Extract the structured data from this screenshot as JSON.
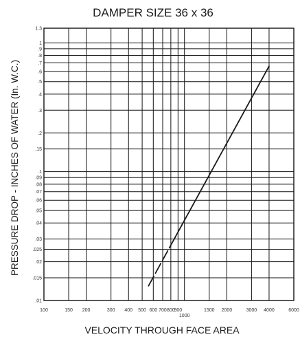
{
  "chart_data": {
    "type": "line",
    "title": "DAMPER SIZE 36 x 36",
    "xlabel": "VELOCITY THROUGH FACE AREA",
    "ylabel": "PRESSURE DROP - INCHES OF WATER (In. W.C.)",
    "x_scale": "log",
    "y_scale": "log",
    "xlim": [
      100,
      6000
    ],
    "ylim": [
      0.01,
      1.3
    ],
    "grid": true,
    "x_ticks": [
      {
        "value": 100,
        "label": "100"
      },
      {
        "value": 150,
        "label": "150"
      },
      {
        "value": 200,
        "label": "200"
      },
      {
        "value": 300,
        "label": "300"
      },
      {
        "value": 400,
        "label": "400"
      },
      {
        "value": 500,
        "label": "500"
      },
      {
        "value": 600,
        "label": "600"
      },
      {
        "value": 700,
        "label": "700"
      },
      {
        "value": 800,
        "label": "800"
      },
      {
        "value": 900,
        "label": "900"
      },
      {
        "value": 1000,
        "label": "1000"
      },
      {
        "value": 1500,
        "label": "1500"
      },
      {
        "value": 2000,
        "label": "2000"
      },
      {
        "value": 3000,
        "label": "3000"
      },
      {
        "value": 4000,
        "label": "4000"
      },
      {
        "value": 6000,
        "label": "6000"
      }
    ],
    "y_ticks": [
      {
        "value": 0.01,
        "label": ".01"
      },
      {
        "value": 0.015,
        "label": ".015"
      },
      {
        "value": 0.02,
        "label": ".02"
      },
      {
        "value": 0.025,
        "label": ".025"
      },
      {
        "value": 0.03,
        "label": ".03"
      },
      {
        "value": 0.04,
        "label": ".04"
      },
      {
        "value": 0.05,
        "label": ".05"
      },
      {
        "value": 0.06,
        "label": ".06"
      },
      {
        "value": 0.07,
        "label": ".07"
      },
      {
        "value": 0.08,
        "label": ".08"
      },
      {
        "value": 0.09,
        "label": ".09"
      },
      {
        "value": 0.1,
        "label": ".1"
      },
      {
        "value": 0.15,
        "label": ".15"
      },
      {
        "value": 0.2,
        "label": ".2"
      },
      {
        "value": 0.3,
        "label": ".3"
      },
      {
        "value": 0.4,
        "label": ".4"
      },
      {
        "value": 0.5,
        "label": ".5"
      },
      {
        "value": 0.6,
        "label": ".6"
      },
      {
        "value": 0.7,
        "label": ".7"
      },
      {
        "value": 0.8,
        "label": ".8"
      },
      {
        "value": 0.9,
        "label": ".9"
      },
      {
        "value": 1.0,
        "label": "1"
      },
      {
        "value": 1.3,
        "label": "1.3"
      }
    ],
    "series": [
      {
        "points": [
          {
            "x": 555,
            "y": 0.013
          },
          {
            "x": 4000,
            "y": 0.66
          }
        ],
        "dashed_until_x": 850
      }
    ],
    "colors": {
      "line": "#1a1a1a",
      "grid": "#111111"
    }
  }
}
